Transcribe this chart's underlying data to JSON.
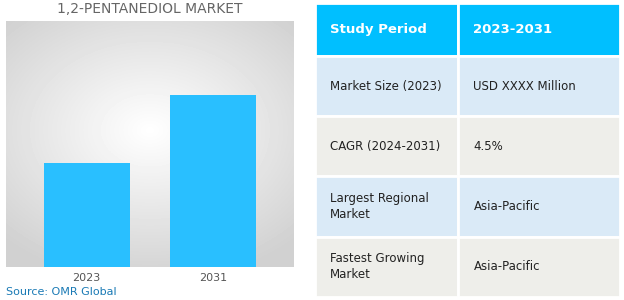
{
  "title": "1,2-PENTANEDIOL MARKET",
  "bar_years": [
    "2023",
    "2031"
  ],
  "bar_values": [
    38,
    63
  ],
  "bar_color": "#29BFFF",
  "shadow_color": "#bbbbbb",
  "source_text": "Source: OMR Global",
  "source_color": "#1a7ab5",
  "table_header_bg": "#00BFFF",
  "table_header_text_color": "#ffffff",
  "table_alt_bg1": "#daeaf7",
  "table_alt_bg2": "#eeeeeA",
  "table_rows": [
    [
      "Study Period",
      "2023-2031"
    ],
    [
      "Market Size (2023)",
      "USD XXXX Million"
    ],
    [
      "CAGR (2024-2031)",
      "4.5%"
    ],
    [
      "Largest Regional\nMarket",
      "Asia-Pacific"
    ],
    [
      "Fastest Growing\nMarket",
      "Asia-Pacific"
    ]
  ],
  "title_fontsize": 10,
  "tick_fontsize": 8,
  "source_fontsize": 8,
  "table_header_fontsize": 9.5,
  "table_cell_fontsize": 8.5
}
